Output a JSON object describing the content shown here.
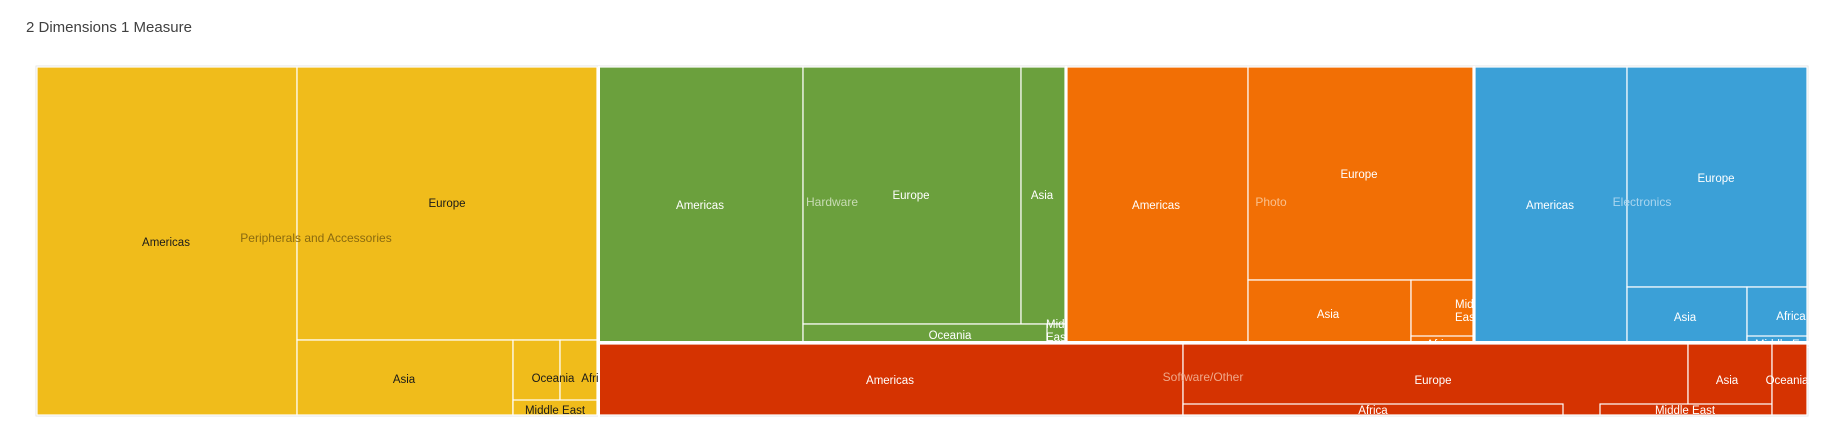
{
  "page_title": "2 Dimensions 1 Measure",
  "chart_data": {
    "type": "treemap",
    "title": "2 Dimensions 1 Measure",
    "groups": [
      {
        "name": "Peripherals and Accessories",
        "color": "#F0BC1B",
        "text_color": "#1a1a1a",
        "group_label_color": "#8a6a10",
        "children": [
          "Americas",
          "Europe",
          "Asia",
          "Oceania",
          "Africa",
          "Middle East"
        ]
      },
      {
        "name": "Hardware",
        "color": "#6BA03D",
        "text_color": "#ffffff",
        "group_label_color": "#c8dcb4",
        "children": [
          "Americas",
          "Europe",
          "Asia",
          "Oceania",
          "Middle East"
        ]
      },
      {
        "name": "Photo",
        "color": "#F26F05",
        "text_color": "#ffffff",
        "group_label_color": "#f9c08d",
        "children": [
          "Americas",
          "Europe",
          "Asia",
          "Middle East",
          "Africa"
        ]
      },
      {
        "name": "Electronics",
        "color": "#3BA0D7",
        "text_color": "#ffffff",
        "group_label_color": "#a9d5ef",
        "children": [
          "Americas",
          "Europe",
          "Asia",
          "Africa",
          "Middle East"
        ]
      },
      {
        "name": "Software/Other",
        "color": "#D53301",
        "text_color": "#ffffff",
        "group_label_color": "#f0a88a",
        "children": [
          "Americas",
          "Europe",
          "Africa",
          "Asia",
          "Middle East",
          "Oceania"
        ]
      }
    ]
  }
}
